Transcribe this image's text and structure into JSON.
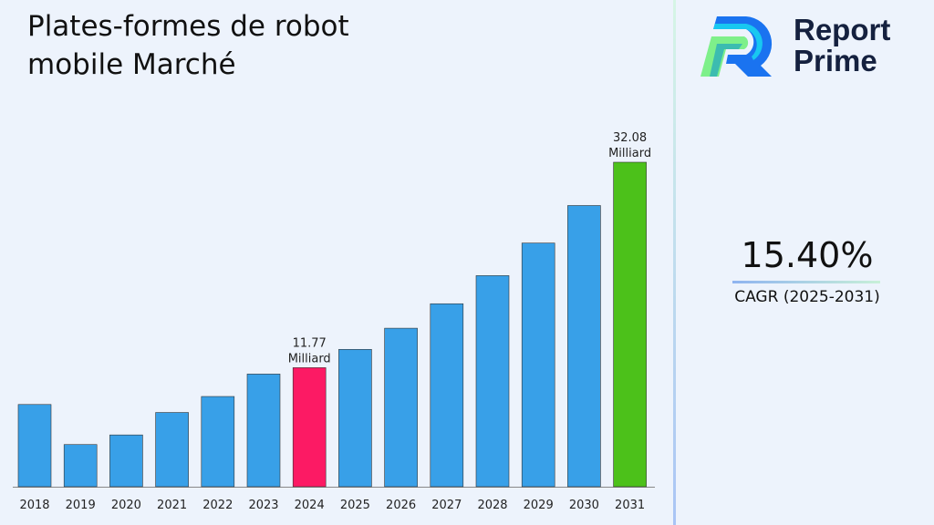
{
  "title": "Plates-formes de robot mobile Marché",
  "logo": {
    "line1": "Report",
    "line2": "Prime"
  },
  "cagr": {
    "value": "15.40%",
    "label": "CAGR (2025-2031)"
  },
  "colors": {
    "default_bar": "#38a0e8",
    "highlight_2024": "#fc1a64",
    "highlight_2031": "#4cc11a",
    "background": "#edf3fc"
  },
  "chart_data": {
    "type": "bar",
    "title": "Plates-formes de robot mobile Marché",
    "xlabel": "",
    "ylabel": "",
    "categories": [
      "2018",
      "2019",
      "2020",
      "2021",
      "2022",
      "2023",
      "2024",
      "2025",
      "2026",
      "2027",
      "2028",
      "2029",
      "2030",
      "2031"
    ],
    "values": [
      8.13,
      4.17,
      5.12,
      7.34,
      8.92,
      11.14,
      11.77,
      13.58,
      15.67,
      18.09,
      20.87,
      24.09,
      27.8,
      32.08
    ],
    "data_labels": [
      {
        "category": "2024",
        "value": "11.77",
        "unit": "Milliard"
      },
      {
        "category": "2031",
        "value": "32.08",
        "unit": "Milliard"
      }
    ],
    "grid": false,
    "legend": "none"
  }
}
